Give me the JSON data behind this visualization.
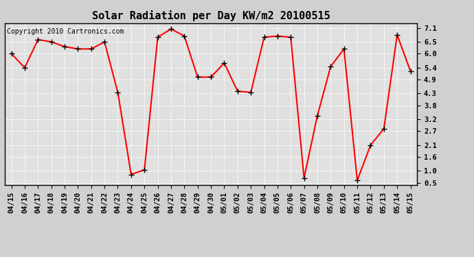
{
  "title": "Solar Radiation per Day KW/m2 20100515",
  "copyright_text": "Copyright 2010 Cartronics.com",
  "labels": [
    "04/15",
    "04/16",
    "04/17",
    "04/18",
    "04/19",
    "04/20",
    "04/21",
    "04/22",
    "04/23",
    "04/24",
    "04/25",
    "04/26",
    "04/27",
    "04/28",
    "04/29",
    "04/30",
    "05/01",
    "05/02",
    "05/03",
    "05/04",
    "05/05",
    "05/06",
    "05/07",
    "05/08",
    "05/09",
    "05/10",
    "05/11",
    "05/12",
    "05/13",
    "05/14",
    "05/15"
  ],
  "values": [
    6.0,
    5.4,
    6.6,
    6.5,
    6.3,
    6.2,
    6.2,
    6.5,
    4.35,
    0.85,
    1.05,
    6.7,
    7.05,
    6.75,
    5.0,
    5.0,
    5.6,
    4.4,
    4.35,
    6.7,
    6.75,
    6.7,
    0.7,
    3.35,
    5.45,
    6.2,
    0.6,
    2.1,
    2.8,
    6.8,
    5.25
  ],
  "yticks": [
    0.5,
    1.0,
    1.6,
    2.1,
    2.7,
    3.2,
    3.8,
    4.3,
    4.9,
    5.4,
    6.0,
    6.5,
    7.1
  ],
  "ylim": [
    0.4,
    7.3
  ],
  "line_color": "#ff0000",
  "marker": "+",
  "marker_color": "#000000",
  "bg_color": "#d0d0d0",
  "plot_bg_color": "#e0e0e0",
  "grid_color": "#ffffff",
  "title_fontsize": 11,
  "copyright_fontsize": 7,
  "tick_fontsize": 7.5,
  "marker_size": 6,
  "line_width": 1.5
}
